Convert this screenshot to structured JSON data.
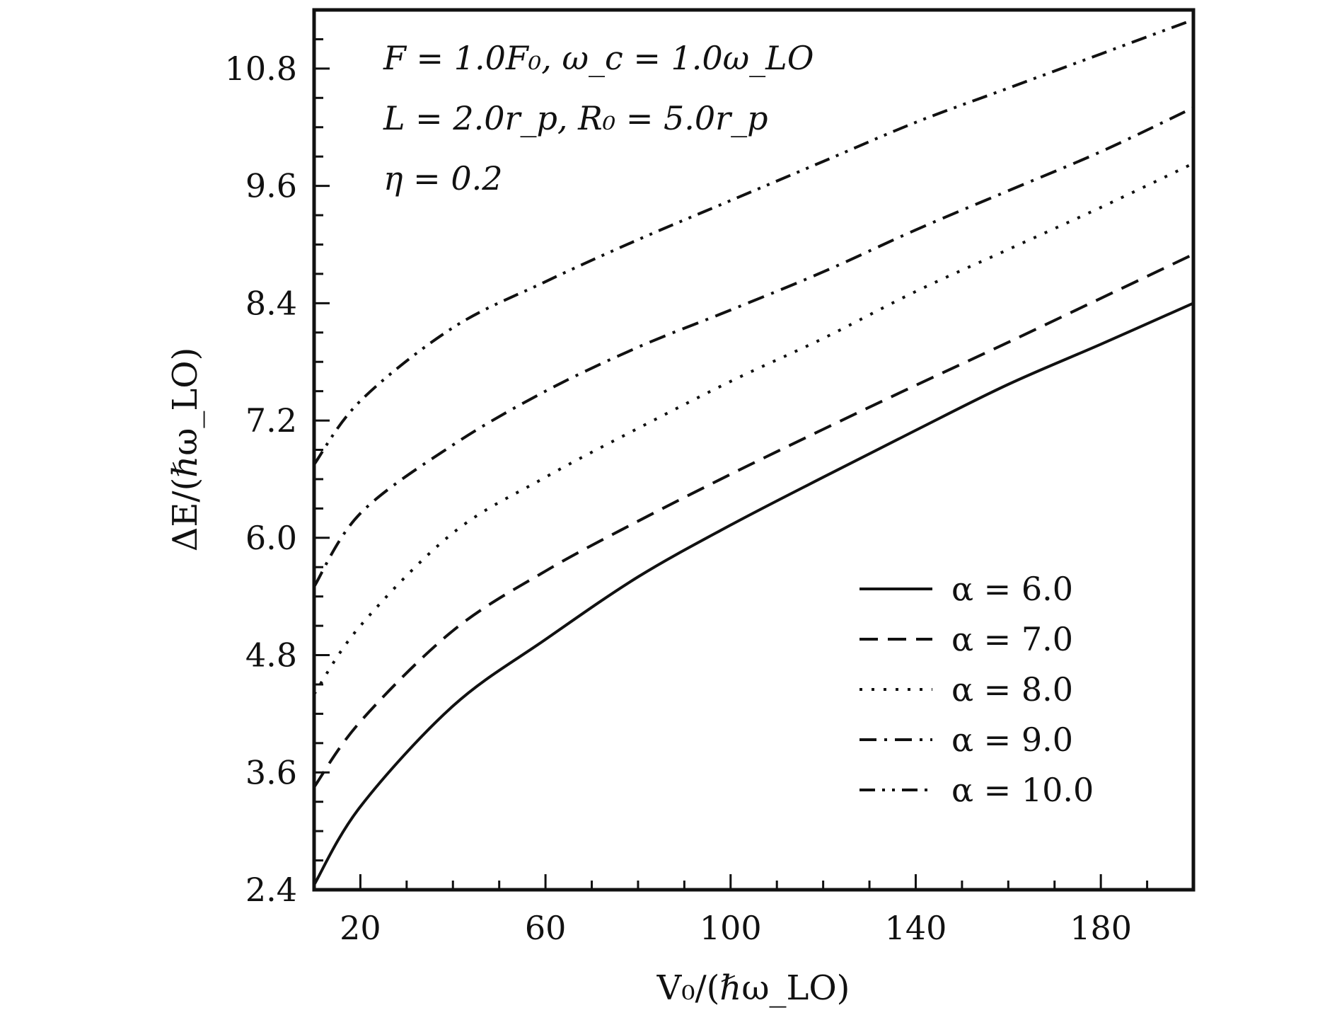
{
  "chart_data": {
    "type": "line",
    "xlabel": "V₀/(ℏω_LO)",
    "ylabel": "ΔE/(ℏω_LO)",
    "xlim": [
      10,
      200
    ],
    "ylim": [
      2.4,
      11.4
    ],
    "xticks": [
      20,
      60,
      100,
      140,
      180
    ],
    "xtick_labels": [
      "20",
      "60",
      "100",
      "140",
      "180"
    ],
    "yticks": [
      2.4,
      3.6,
      4.8,
      6.0,
      7.2,
      8.4,
      9.6,
      10.8
    ],
    "ytick_labels": [
      "2.4",
      "3.6",
      "4.8",
      "6.0",
      "7.2",
      "8.4",
      "9.6",
      "10.8"
    ],
    "annotations": [
      "F = 1.0F₀, ω_c = 1.0ω_LO",
      "L = 2.0r_p, R₀ = 5.0r_p",
      "η = 0.2"
    ],
    "legend_position": "bottom-right",
    "grid": false,
    "x": [
      10,
      20,
      40,
      60,
      80,
      100,
      120,
      140,
      160,
      180,
      200
    ],
    "series": [
      {
        "name": "α = 6.0",
        "dash": "solid",
        "values": [
          2.45,
          3.25,
          4.28,
          4.96,
          5.6,
          6.13,
          6.62,
          7.1,
          7.57,
          7.98,
          8.4
        ]
      },
      {
        "name": "α = 7.0",
        "dash": "dashed",
        "values": [
          3.45,
          4.12,
          5.05,
          5.66,
          6.17,
          6.65,
          7.11,
          7.56,
          8.0,
          8.45,
          8.9
        ]
      },
      {
        "name": "α = 8.0",
        "dash": "dotted",
        "values": [
          4.4,
          5.1,
          6.05,
          6.62,
          7.12,
          7.6,
          8.04,
          8.52,
          8.95,
          9.38,
          9.83
        ]
      },
      {
        "name": "α = 9.0",
        "dash": "dashdot",
        "values": [
          5.5,
          6.25,
          6.95,
          7.5,
          7.95,
          8.33,
          8.72,
          9.15,
          9.55,
          9.95,
          10.4
        ]
      },
      {
        "name": "α = 10.0",
        "dash": "dashdotdot",
        "values": [
          6.75,
          7.4,
          8.15,
          8.62,
          9.05,
          9.45,
          9.85,
          10.25,
          10.6,
          10.95,
          11.3
        ]
      }
    ]
  }
}
